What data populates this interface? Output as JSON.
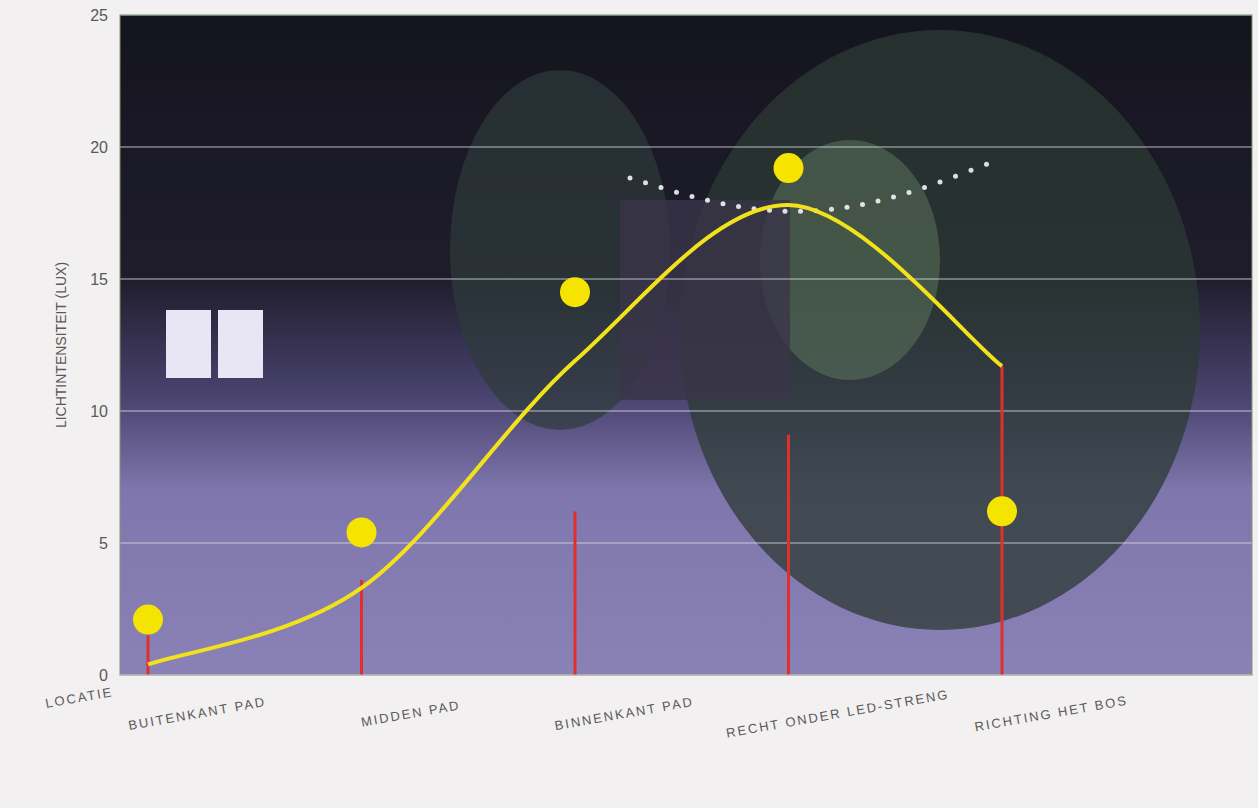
{
  "chart_data": {
    "type": "line",
    "y_label": "LICHTINTENSITEIT (LUX)",
    "x_label": "LOCATIE",
    "categories": [
      "BUITENKANT PAD",
      "MIDDEN PAD",
      "BINNENKANT PAD",
      "RECHT ONDER LED-STRENG",
      "RICHTING HET BOS"
    ],
    "series": [
      {
        "type": "scatter",
        "color": "#f5e400",
        "marker": "circle",
        "values": [
          2.1,
          5.4,
          14.5,
          19.2,
          6.2
        ]
      },
      {
        "type": "line",
        "color": "#f2e21c",
        "line_style": "smooth",
        "values": [
          0.4,
          3.3,
          11.9,
          17.8,
          11.7
        ]
      },
      {
        "type": "bar",
        "color": "#e0302e",
        "values": [
          1.5,
          3.6,
          6.2,
          9.1,
          11.7
        ]
      }
    ],
    "ylim": [
      0,
      25
    ],
    "yticks": [
      0,
      5,
      10,
      15,
      20,
      25
    ],
    "grid": true
  }
}
